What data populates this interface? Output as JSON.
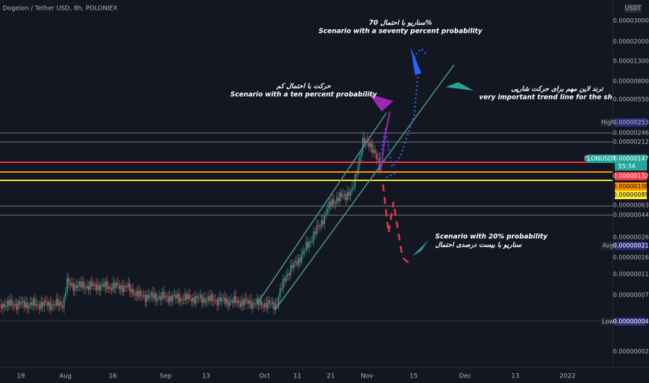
{
  "header": {
    "title": "Dogelon / Tether USD, 8h, POLONIEX",
    "currency": "USDT"
  },
  "price_axis": [
    "0.00003000",
    "0.00002000",
    "0.00001300",
    "0.00000800",
    "0.00000550",
    "0.00000246",
    "0.00000212",
    "0.00000063",
    "0.00000044",
    "0.00000026",
    "0.00000016",
    "0.00000011",
    "0.00000007",
    "0.00000002"
  ],
  "tags": {
    "high": {
      "label": "High",
      "price": "0.00000253"
    },
    "symbol": {
      "label": "ELONUSDT",
      "price": "0.00000147",
      "countdown": "55:34"
    },
    "red": "0.00000132",
    "orange": "0.00000108",
    "yellow": "0.00000089",
    "avg": {
      "label": "Avg",
      "price": "0.00000021"
    },
    "low": {
      "label": "Low",
      "price": "0.00000004"
    }
  },
  "time_axis": [
    "19",
    "Aug",
    "16",
    "Sep",
    "13",
    "Oct",
    "11",
    "21",
    "Nov",
    "15",
    "Dec",
    "13",
    "2022"
  ],
  "annotations": {
    "seventy": {
      "fa": "سناریو با احتمال 70%",
      "en": "Scenario with a seventy percent probability"
    },
    "ten": {
      "fa": "حرکت با احتمال کم",
      "en": "Scenario with a ten percent probability"
    },
    "trend": {
      "fa": "ترند لاین مهم برای حرکت شارپی",
      "en": "very important trend line for the sharply moveme"
    },
    "twenty": {
      "en": "Scenario with 20% probability",
      "fa": "سناریو با بیست درصدی احتمال"
    }
  }
}
